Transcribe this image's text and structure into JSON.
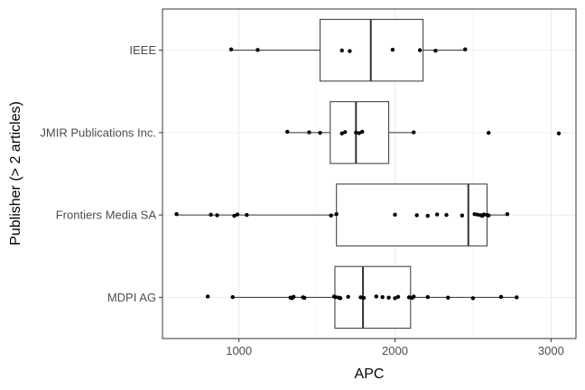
{
  "chart_data": {
    "type": "boxplot",
    "orientation": "horizontal",
    "xlabel": "APC",
    "ylabel": "Publisher (> 2 articles)",
    "xlim": [
      510,
      3160
    ],
    "xticks": [
      1000,
      2000,
      3000
    ],
    "grid": true,
    "legend": "none",
    "categories": [
      "IEEE",
      "JMIR Publications Inc.",
      "Frontiers Media SA",
      "MDPI AG"
    ],
    "boxes": [
      {
        "name": "IEEE",
        "whisker_low": 950,
        "q1": 1520,
        "median": 1845,
        "q3": 2180,
        "whisker_high": 2450,
        "points": [
          950,
          1120,
          1660,
          1710,
          1985,
          2160,
          2260,
          2450
        ]
      },
      {
        "name": "JMIR Publications Inc.",
        "whisker_low": 1310,
        "q1": 1585,
        "median": 1750,
        "q3": 1960,
        "whisker_high": 2120,
        "points": [
          1310,
          1450,
          1520,
          1660,
          1680,
          1750,
          1770,
          1790,
          2120,
          2600,
          3050
        ]
      },
      {
        "name": "Frontiers Media SA",
        "whisker_low": 600,
        "q1": 1625,
        "median": 2470,
        "q3": 2590,
        "whisker_high": 2720,
        "points": [
          600,
          820,
          860,
          970,
          990,
          1050,
          1590,
          1625,
          2000,
          2140,
          2210,
          2270,
          2330,
          2430,
          2510,
          2530,
          2550,
          2560,
          2570,
          2590,
          2600,
          2720
        ]
      },
      {
        "name": "MDPI AG",
        "whisker_low": 960,
        "q1": 1615,
        "median": 1795,
        "q3": 2100,
        "whisker_high": 2780,
        "points": [
          800,
          960,
          1330,
          1340,
          1350,
          1410,
          1420,
          1610,
          1620,
          1640,
          1650,
          1700,
          1780,
          1800,
          1880,
          1920,
          1960,
          2000,
          2020,
          2090,
          2110,
          2120,
          2210,
          2340,
          2500,
          2680,
          2780
        ]
      }
    ]
  }
}
